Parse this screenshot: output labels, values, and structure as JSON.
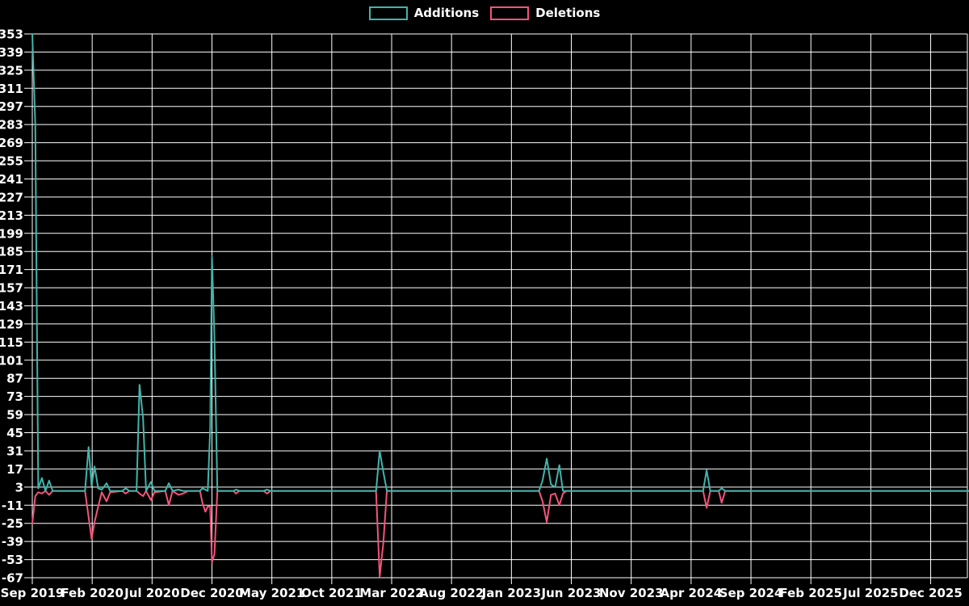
{
  "legend": {
    "additions_label": "Additions",
    "deletions_label": "Deletions"
  },
  "colors": {
    "additions": "#40b5ab",
    "deletions": "#f4547c",
    "background": "#000000",
    "grid": "#ffffff",
    "text": "#ffffff"
  },
  "chart_data": {
    "type": "line",
    "title": "",
    "xlabel": "",
    "ylabel": "",
    "x_unit": "months since Sep 2019 (weekly commit activity)",
    "grid": true,
    "legend_position": "top-center",
    "ylim": [
      -67,
      353
    ],
    "xlim": [
      0,
      78.2
    ],
    "y_ticks": [
      353,
      339,
      325,
      311,
      297,
      283,
      269,
      255,
      241,
      227,
      213,
      199,
      185,
      171,
      157,
      143,
      129,
      115,
      101,
      87,
      73,
      59,
      45,
      31,
      17,
      3,
      -11,
      -25,
      -39,
      -53,
      -67
    ],
    "x_ticks": [
      {
        "offset": 0,
        "label": "Sep 2019"
      },
      {
        "offset": 5,
        "label": "Feb 2020"
      },
      {
        "offset": 10,
        "label": "Jul 2020"
      },
      {
        "offset": 15,
        "label": "Dec 2020"
      },
      {
        "offset": 20,
        "label": "May 2021"
      },
      {
        "offset": 25,
        "label": "Oct 2021"
      },
      {
        "offset": 30,
        "label": "Mar 2022"
      },
      {
        "offset": 35,
        "label": "Aug 2022"
      },
      {
        "offset": 40,
        "label": "Jan 2023"
      },
      {
        "offset": 45,
        "label": "Jun 2023"
      },
      {
        "offset": 50,
        "label": "Nov 2023"
      },
      {
        "offset": 55,
        "label": "Apr 2024"
      },
      {
        "offset": 60,
        "label": "Sep 2024"
      },
      {
        "offset": 65,
        "label": "Feb 2025"
      },
      {
        "offset": 70,
        "label": "Jul 2025"
      },
      {
        "offset": 75,
        "label": "Dec 2025"
      }
    ],
    "x": [
      0,
      0.25,
      0.5,
      0.8,
      1.1,
      1.4,
      1.7,
      4.4,
      4.7,
      4.95,
      5.2,
      5.5,
      5.8,
      6.2,
      6.5,
      7.5,
      7.8,
      8.1,
      8.7,
      8.95,
      9.25,
      9.5,
      9.9,
      10.2,
      11.1,
      11.4,
      11.7,
      12.2,
      12.6,
      13.0,
      14.0,
      14.2,
      14.45,
      14.65,
      14.85,
      15.0,
      15.2,
      15.45,
      16.8,
      17.0,
      17.3,
      19.3,
      19.6,
      19.9,
      28.7,
      29.0,
      29.3,
      29.6,
      42.3,
      42.6,
      42.95,
      43.3,
      43.65,
      44.0,
      44.3,
      44.6,
      56.0,
      56.3,
      56.6,
      57.3,
      57.55,
      57.85,
      78.2
    ],
    "series": [
      {
        "name": "Additions",
        "color": "#40b5ab",
        "values": [
          353,
          283,
          2,
          10,
          0,
          8,
          0,
          0,
          34,
          4,
          19,
          2,
          1,
          6,
          0,
          0,
          2,
          0,
          0,
          82,
          56,
          0,
          7,
          0,
          0,
          6,
          0,
          1,
          0,
          0,
          0,
          2,
          1,
          0,
          48,
          181,
          120,
          0,
          0,
          1,
          0,
          0,
          1,
          0,
          0,
          31,
          15,
          0,
          0,
          8,
          25,
          5,
          3,
          20,
          0,
          0,
          0,
          16,
          0,
          0,
          2,
          0,
          0
        ]
      },
      {
        "name": "Deletions",
        "color": "#f4547c",
        "values": [
          -25,
          -4,
          -1,
          -2,
          0,
          -3,
          0,
          0,
          -20,
          -37,
          -24,
          -12,
          -1,
          -8,
          -1,
          0,
          -2,
          0,
          0,
          -2,
          -4,
          0,
          -7,
          -1,
          0,
          -11,
          0,
          -3,
          -2,
          0,
          0,
          -9,
          -16,
          -12,
          -12,
          -55,
          -49,
          0,
          0,
          -2,
          0,
          0,
          -2,
          0,
          0,
          -66,
          -41,
          0,
          0,
          -8,
          -24,
          -3,
          -2,
          -11,
          -2,
          0,
          0,
          -13,
          0,
          0,
          -9,
          0,
          0
        ]
      }
    ]
  }
}
